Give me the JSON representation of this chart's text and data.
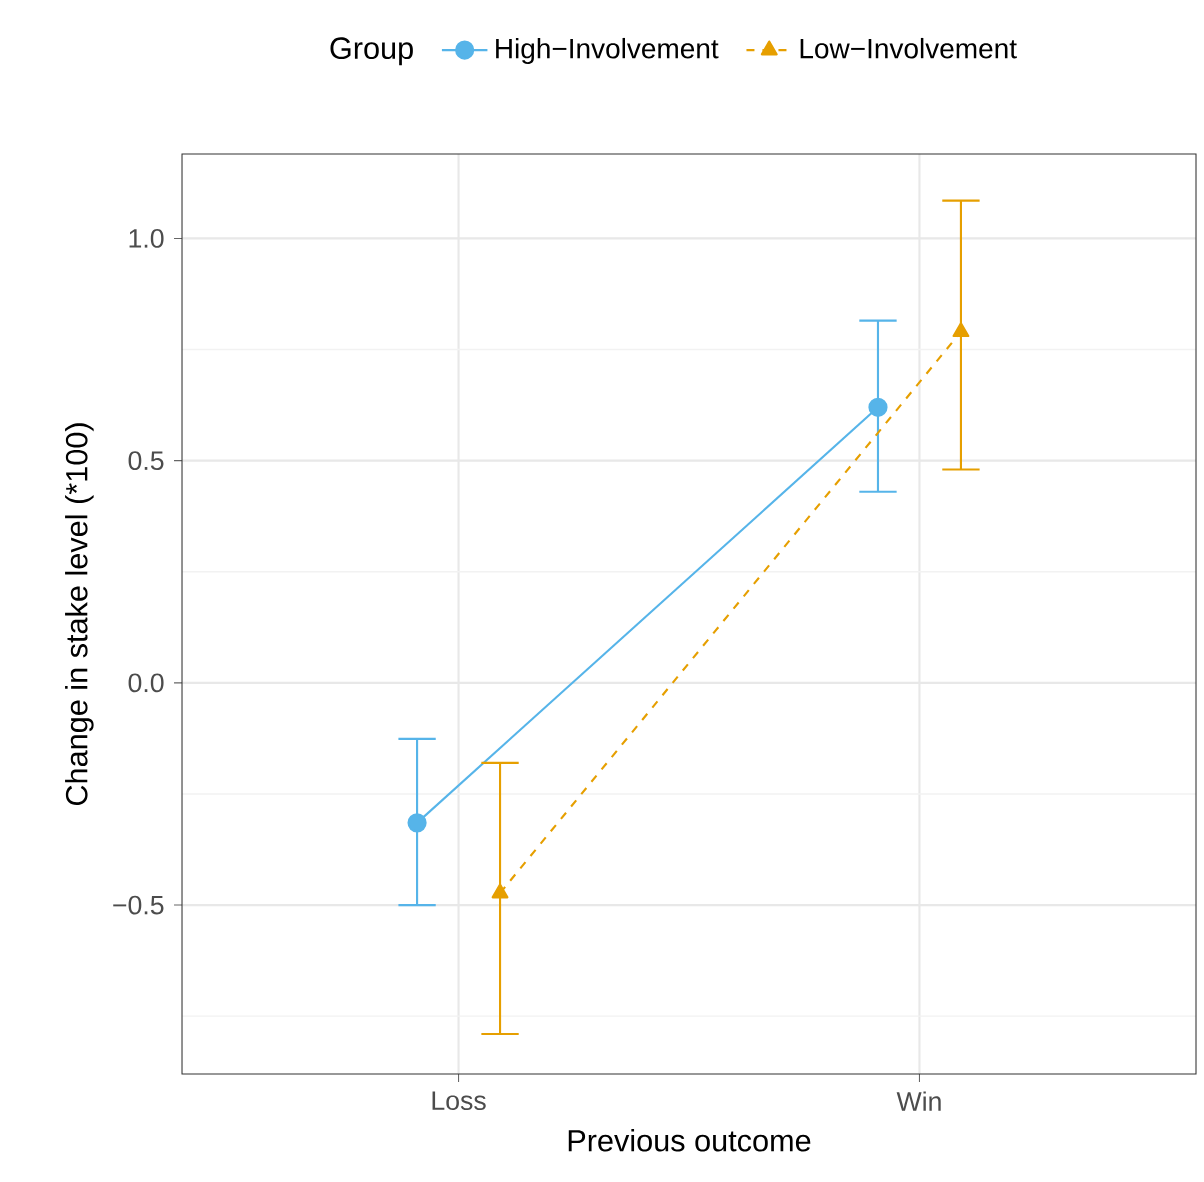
{
  "chart_data": {
    "type": "line",
    "xlabel": "Previous outcome",
    "ylabel": "Change in stake level (*100)",
    "legend_title": "Group",
    "legend": "top",
    "grid": true,
    "categories": [
      "Loss",
      "Win"
    ],
    "series": [
      {
        "name": "High−Involvement",
        "color": "#56b4e9",
        "marker": "circle",
        "line_style": "solid",
        "values": [
          -0.315,
          0.62
        ],
        "errors": [
          [
            -0.5,
            -0.126
          ],
          [
            0.43,
            0.815
          ]
        ]
      },
      {
        "name": "Low−Involvement",
        "color": "#e69f00",
        "marker": "triangle",
        "line_style": "dashed",
        "values": [
          -0.473,
          0.79
        ],
        "errors": [
          [
            -0.79,
            -0.18
          ],
          [
            0.48,
            1.085
          ]
        ]
      }
    ],
    "ylim": [
      -0.88,
      1.19
    ],
    "yticks": [
      {
        "value": -0.5,
        "label": "−0.5"
      },
      {
        "value": 0,
        "label": "0.0"
      },
      0.5,
      {
        "value": 1,
        "label": "1.0"
      }
    ]
  }
}
